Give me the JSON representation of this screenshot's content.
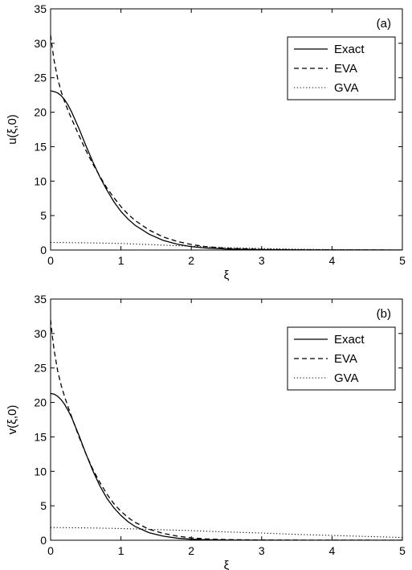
{
  "chart_data": [
    {
      "type": "line",
      "panel_label": "(a)",
      "xlabel": "ξ",
      "ylabel": "u(ξ,0)",
      "xlim": [
        0,
        5
      ],
      "ylim": [
        0,
        35
      ],
      "xticks": [
        "0",
        "1",
        "2",
        "3",
        "4",
        "5"
      ],
      "yticks": [
        "0",
        "5",
        "10",
        "15",
        "20",
        "25",
        "30",
        "35"
      ],
      "grid": false,
      "legend_position": "top-right",
      "series": [
        {
          "name": "Exact",
          "style": "solid",
          "x": [
            0,
            0.05,
            0.1,
            0.15,
            0.2,
            0.25,
            0.3,
            0.4,
            0.5,
            0.6,
            0.7,
            0.8,
            0.9,
            1.0,
            1.1,
            1.2,
            1.4,
            1.6,
            1.8,
            2.0,
            2.2,
            2.5,
            3.0,
            3.5,
            4.0,
            5.0
          ],
          "y": [
            23.1,
            23.0,
            22.8,
            22.4,
            21.8,
            21.0,
            20.0,
            17.7,
            15.2,
            12.8,
            10.6,
            8.7,
            7.0,
            5.6,
            4.5,
            3.6,
            2.3,
            1.4,
            0.85,
            0.5,
            0.3,
            0.15,
            0.05,
            0.02,
            0.01,
            0.0
          ]
        },
        {
          "name": "EVA",
          "style": "dashed",
          "x": [
            0,
            0.02,
            0.05,
            0.1,
            0.15,
            0.2,
            0.25,
            0.3,
            0.4,
            0.5,
            0.6,
            0.7,
            0.8,
            0.9,
            1.0,
            1.1,
            1.2,
            1.4,
            1.6,
            1.8,
            2.0,
            2.2,
            2.5,
            3.0,
            3.5,
            4.0,
            5.0
          ],
          "y": [
            31.2,
            29.6,
            27.5,
            24.9,
            23.0,
            21.5,
            20.2,
            19.0,
            16.7,
            14.5,
            12.5,
            10.7,
            9.0,
            7.6,
            6.3,
            5.2,
            4.3,
            2.9,
            1.9,
            1.25,
            0.8,
            0.5,
            0.25,
            0.1,
            0.04,
            0.02,
            0.0
          ]
        },
        {
          "name": "GVA",
          "style": "dotted",
          "x": [
            0,
            0.5,
            1.0,
            1.5,
            2.0,
            2.5,
            3.0,
            3.5,
            4.0,
            4.5,
            5.0
          ],
          "y": [
            1.1,
            1.05,
            0.95,
            0.75,
            0.55,
            0.35,
            0.22,
            0.12,
            0.06,
            0.03,
            0.01
          ]
        }
      ]
    },
    {
      "type": "line",
      "panel_label": "(b)",
      "xlabel": "ξ",
      "ylabel": "v(ξ,0)",
      "xlim": [
        0,
        5
      ],
      "ylim": [
        0,
        35
      ],
      "xticks": [
        "0",
        "1",
        "2",
        "3",
        "4",
        "5"
      ],
      "yticks": [
        "0",
        "5",
        "10",
        "15",
        "20",
        "25",
        "30",
        "35"
      ],
      "grid": false,
      "legend_position": "top-right",
      "series": [
        {
          "name": "Exact",
          "style": "solid",
          "x": [
            0,
            0.05,
            0.1,
            0.15,
            0.2,
            0.25,
            0.3,
            0.4,
            0.5,
            0.6,
            0.7,
            0.8,
            0.9,
            1.0,
            1.1,
            1.2,
            1.4,
            1.6,
            1.8,
            2.0,
            2.2,
            2.5,
            3.0,
            3.5,
            4.0,
            5.0
          ],
          "y": [
            21.3,
            21.2,
            20.9,
            20.4,
            19.7,
            18.8,
            17.8,
            15.3,
            12.6,
            10.1,
            7.9,
            6.1,
            4.7,
            3.6,
            2.7,
            2.0,
            1.1,
            0.6,
            0.3,
            0.15,
            0.08,
            0.03,
            0.01,
            0.0,
            0.0,
            0.0
          ]
        },
        {
          "name": "EVA",
          "style": "dashed",
          "x": [
            0,
            0.02,
            0.05,
            0.1,
            0.15,
            0.2,
            0.25,
            0.3,
            0.4,
            0.5,
            0.6,
            0.7,
            0.8,
            0.9,
            1.0,
            1.1,
            1.2,
            1.4,
            1.6,
            1.8,
            2.0,
            2.2,
            2.5,
            3.0,
            3.5,
            4.0,
            5.0
          ],
          "y": [
            32.0,
            30.0,
            27.6,
            24.6,
            22.5,
            20.8,
            19.3,
            17.9,
            15.1,
            12.6,
            10.3,
            8.4,
            6.7,
            5.3,
            4.2,
            3.3,
            2.6,
            1.6,
            1.0,
            0.6,
            0.35,
            0.2,
            0.1,
            0.04,
            0.02,
            0.01,
            0.0
          ]
        },
        {
          "name": "GVA",
          "style": "dotted",
          "x": [
            0,
            0.5,
            1.0,
            1.5,
            2.0,
            2.5,
            3.0,
            3.5,
            4.0,
            4.5,
            5.0
          ],
          "y": [
            1.85,
            1.8,
            1.7,
            1.55,
            1.4,
            1.2,
            1.05,
            0.85,
            0.7,
            0.55,
            0.4
          ]
        }
      ]
    }
  ]
}
